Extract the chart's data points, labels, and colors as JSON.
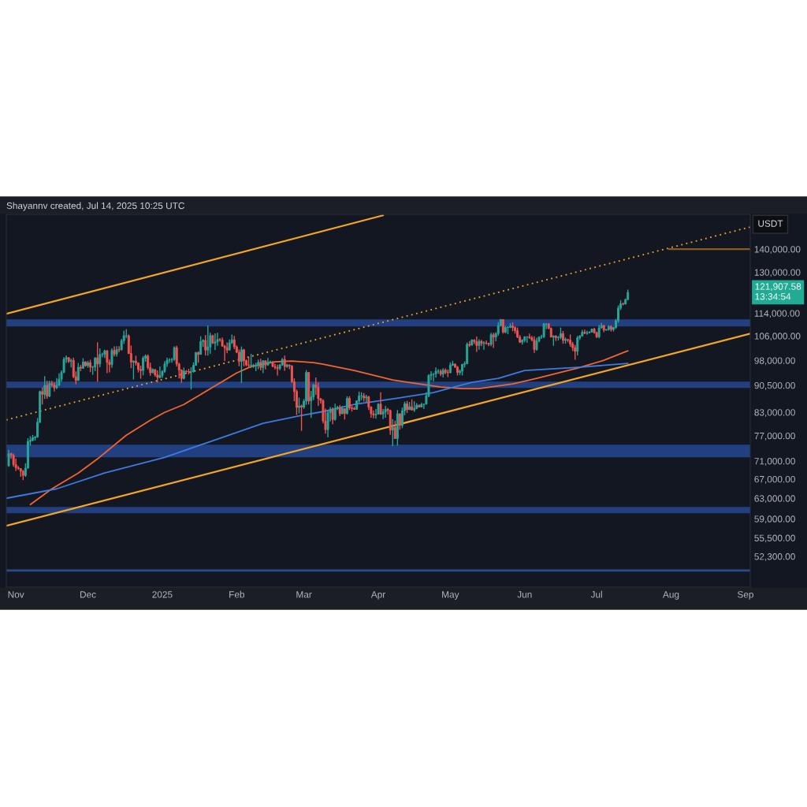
{
  "chart_data": {
    "type": "candlestick",
    "title": "Shayannv created, Jul 14, 2025 10:25 UTC",
    "x": [
      "2024-10-29",
      "2024-10-30",
      "2024-10-31",
      "2024-11-01",
      "2024-11-02",
      "2024-11-03",
      "2024-11-04",
      "2024-11-05",
      "2024-11-06",
      "2024-11-07",
      "2024-11-08",
      "2024-11-09",
      "2024-11-10",
      "2024-11-11",
      "2024-11-12",
      "2024-11-13",
      "2024-11-14",
      "2024-11-15",
      "2024-11-16",
      "2024-11-17",
      "2024-11-18",
      "2024-11-19",
      "2024-11-20",
      "2024-11-21",
      "2024-11-22",
      "2024-11-23",
      "2024-11-24",
      "2024-11-25",
      "2024-11-26",
      "2024-11-27",
      "2024-11-28",
      "2024-11-29",
      "2024-11-30",
      "2024-12-01",
      "2024-12-02",
      "2024-12-03",
      "2024-12-04",
      "2024-12-05",
      "2024-12-06",
      "2024-12-07",
      "2024-12-08",
      "2024-12-09",
      "2024-12-10",
      "2024-12-11",
      "2024-12-12",
      "2024-12-13",
      "2024-12-14",
      "2024-12-15",
      "2024-12-16",
      "2024-12-17",
      "2024-12-18",
      "2024-12-19",
      "2024-12-20",
      "2024-12-21",
      "2024-12-22",
      "2024-12-23",
      "2024-12-24",
      "2024-12-25",
      "2024-12-26",
      "2024-12-27",
      "2024-12-28",
      "2024-12-29",
      "2024-12-30",
      "2024-12-31",
      "2025-01-01",
      "2025-01-02",
      "2025-01-03",
      "2025-01-04",
      "2025-01-05",
      "2025-01-06",
      "2025-01-07",
      "2025-01-08",
      "2025-01-09",
      "2025-01-10",
      "2025-01-11",
      "2025-01-12",
      "2025-01-13",
      "2025-01-14",
      "2025-01-15",
      "2025-01-16",
      "2025-01-17",
      "2025-01-18",
      "2025-01-19",
      "2025-01-20",
      "2025-01-21",
      "2025-01-22",
      "2025-01-23",
      "2025-01-24",
      "2025-01-25",
      "2025-01-26",
      "2025-01-27",
      "2025-01-28",
      "2025-01-29",
      "2025-01-30",
      "2025-01-31",
      "2025-02-01",
      "2025-02-02",
      "2025-02-03",
      "2025-02-04",
      "2025-02-05",
      "2025-02-06",
      "2025-02-07",
      "2025-02-08",
      "2025-02-09",
      "2025-02-10",
      "2025-02-11",
      "2025-02-12",
      "2025-02-13",
      "2025-02-14",
      "2025-02-15",
      "2025-02-16",
      "2025-02-17",
      "2025-02-18",
      "2025-02-19",
      "2025-02-20",
      "2025-02-21",
      "2025-02-22",
      "2025-02-23",
      "2025-02-24",
      "2025-02-25",
      "2025-02-26",
      "2025-02-27",
      "2025-02-28",
      "2025-03-01",
      "2025-03-02",
      "2025-03-03",
      "2025-03-04",
      "2025-03-05",
      "2025-03-06",
      "2025-03-07",
      "2025-03-08",
      "2025-03-09",
      "2025-03-10",
      "2025-03-11",
      "2025-03-12",
      "2025-03-13",
      "2025-03-14",
      "2025-03-15",
      "2025-03-16",
      "2025-03-17",
      "2025-03-18",
      "2025-03-19",
      "2025-03-20",
      "2025-03-21",
      "2025-03-22",
      "2025-03-23",
      "2025-03-24",
      "2025-03-25",
      "2025-03-26",
      "2025-03-27",
      "2025-03-28",
      "2025-03-29",
      "2025-03-30",
      "2025-03-31",
      "2025-04-01",
      "2025-04-02",
      "2025-04-03",
      "2025-04-04",
      "2025-04-05",
      "2025-04-06",
      "2025-04-07",
      "2025-04-08",
      "2025-04-09",
      "2025-04-10",
      "2025-04-11",
      "2025-04-12",
      "2025-04-13",
      "2025-04-14",
      "2025-04-15",
      "2025-04-16",
      "2025-04-17",
      "2025-04-18",
      "2025-04-19",
      "2025-04-20",
      "2025-04-21",
      "2025-04-22",
      "2025-04-23",
      "2025-04-24",
      "2025-04-25",
      "2025-04-26",
      "2025-04-27",
      "2025-04-28",
      "2025-04-29",
      "2025-04-30",
      "2025-05-01",
      "2025-05-02",
      "2025-05-03",
      "2025-05-04",
      "2025-05-05",
      "2025-05-06",
      "2025-05-07",
      "2025-05-08",
      "2025-05-09",
      "2025-05-10",
      "2025-05-11",
      "2025-05-12",
      "2025-05-13",
      "2025-05-14",
      "2025-05-15",
      "2025-05-16",
      "2025-05-17",
      "2025-05-18",
      "2025-05-19",
      "2025-05-20",
      "2025-05-21",
      "2025-05-22",
      "2025-05-23",
      "2025-05-24",
      "2025-05-25",
      "2025-05-26",
      "2025-05-27",
      "2025-05-28",
      "2025-05-29",
      "2025-05-30",
      "2025-05-31",
      "2025-06-01",
      "2025-06-02",
      "2025-06-03",
      "2025-06-04",
      "2025-06-05",
      "2025-06-06",
      "2025-06-07",
      "2025-06-08",
      "2025-06-09",
      "2025-06-10",
      "2025-06-11",
      "2025-06-12",
      "2025-06-13",
      "2025-06-14",
      "2025-06-15",
      "2025-06-16",
      "2025-06-17",
      "2025-06-18",
      "2025-06-19",
      "2025-06-20",
      "2025-06-21",
      "2025-06-22",
      "2025-06-23",
      "2025-06-24",
      "2025-06-25",
      "2025-06-26",
      "2025-06-27",
      "2025-06-28",
      "2025-06-29",
      "2025-06-30",
      "2025-07-01",
      "2025-07-02",
      "2025-07-03",
      "2025-07-04",
      "2025-07-05",
      "2025-07-06",
      "2025-07-07",
      "2025-07-08",
      "2025-07-09",
      "2025-07-10",
      "2025-07-11",
      "2025-07-12",
      "2025-07-13",
      "2025-07-14"
    ],
    "ohlc": [
      [
        69900,
        73600,
        69700,
        72700
      ],
      [
        72700,
        72900,
        71500,
        72300
      ],
      [
        72300,
        72700,
        69700,
        70200
      ],
      [
        70200,
        71600,
        68800,
        69500
      ],
      [
        69500,
        69900,
        69000,
        69300
      ],
      [
        69300,
        69400,
        67500,
        68700
      ],
      [
        68700,
        69000,
        66800,
        67800
      ],
      [
        67800,
        70500,
        67500,
        69400
      ],
      [
        69400,
        76400,
        69300,
        75600
      ],
      [
        75600,
        76900,
        74600,
        75900
      ],
      [
        75900,
        77200,
        75600,
        76500
      ],
      [
        76500,
        76900,
        75800,
        76700
      ],
      [
        76700,
        81500,
        76500,
        80400
      ],
      [
        80400,
        89000,
        80200,
        88700
      ],
      [
        88700,
        89900,
        85100,
        87900
      ],
      [
        87900,
        93200,
        86600,
        90500
      ],
      [
        90500,
        91800,
        86700,
        87400
      ],
      [
        87400,
        91800,
        87100,
        91000
      ],
      [
        91000,
        91800,
        90100,
        90600
      ],
      [
        90600,
        91400,
        88700,
        89800
      ],
      [
        89800,
        92600,
        89400,
        90500
      ],
      [
        90500,
        94000,
        90400,
        92300
      ],
      [
        92300,
        94900,
        91500,
        94300
      ],
      [
        94300,
        99000,
        94100,
        98400
      ],
      [
        98400,
        99600,
        97200,
        98900
      ],
      [
        98900,
        98900,
        97200,
        97700
      ],
      [
        97700,
        98600,
        95800,
        98000
      ],
      [
        98000,
        98900,
        92600,
        93000
      ],
      [
        93000,
        94600,
        90800,
        91900
      ],
      [
        91900,
        97200,
        91800,
        95900
      ],
      [
        95900,
        96600,
        94700,
        95600
      ],
      [
        95600,
        98700,
        95400,
        97500
      ],
      [
        97500,
        97800,
        96000,
        96400
      ],
      [
        96400,
        97900,
        95700,
        97300
      ],
      [
        97300,
        98200,
        94400,
        95900
      ],
      [
        95900,
        96300,
        93600,
        96000
      ],
      [
        96000,
        99000,
        94700,
        98800
      ],
      [
        98800,
        103900,
        91500,
        96900
      ],
      [
        96900,
        101900,
        95900,
        99900
      ],
      [
        99900,
        100500,
        99000,
        99900
      ],
      [
        99900,
        101400,
        98800,
        101100
      ],
      [
        101100,
        101300,
        94100,
        97400
      ],
      [
        97400,
        98300,
        94300,
        96700
      ],
      [
        96700,
        101900,
        95700,
        101200
      ],
      [
        101200,
        102500,
        99300,
        100000
      ],
      [
        100000,
        102600,
        99200,
        101500
      ],
      [
        101500,
        102600,
        100600,
        101400
      ],
      [
        101400,
        105000,
        101200,
        104400
      ],
      [
        104400,
        107800,
        103300,
        106100
      ],
      [
        106100,
        108300,
        105300,
        106100
      ],
      [
        106100,
        106500,
        100000,
        100200
      ],
      [
        100200,
        102800,
        95600,
        97500
      ],
      [
        97500,
        98000,
        92200,
        97800
      ],
      [
        97800,
        99500,
        96400,
        97200
      ],
      [
        97200,
        97400,
        94300,
        95200
      ],
      [
        95200,
        96400,
        92400,
        94900
      ],
      [
        94900,
        99400,
        93400,
        98700
      ],
      [
        98700,
        99900,
        97600,
        99400
      ],
      [
        99400,
        99900,
        95200,
        95800
      ],
      [
        95800,
        97300,
        93300,
        94200
      ],
      [
        94200,
        95500,
        94100,
        95200
      ],
      [
        95200,
        95200,
        93000,
        93600
      ],
      [
        93600,
        94900,
        91300,
        92800
      ],
      [
        92800,
        96100,
        92500,
        93400
      ],
      [
        93400,
        95000,
        92700,
        94600
      ],
      [
        94600,
        97800,
        94200,
        96900
      ],
      [
        96900,
        98900,
        96000,
        98100
      ],
      [
        98100,
        98700,
        97200,
        98200
      ],
      [
        98200,
        98800,
        97300,
        98300
      ],
      [
        98300,
        102500,
        97900,
        102100
      ],
      [
        102100,
        102700,
        96100,
        96900
      ],
      [
        96900,
        97300,
        92500,
        95000
      ],
      [
        95000,
        95300,
        91200,
        92500
      ],
      [
        92500,
        95800,
        92200,
        94700
      ],
      [
        94700,
        95000,
        93800,
        94600
      ],
      [
        94600,
        95400,
        93700,
        94500
      ],
      [
        94500,
        95900,
        89300,
        94500
      ],
      [
        94500,
        97400,
        94300,
        96500
      ],
      [
        96500,
        100700,
        96500,
        100500
      ],
      [
        100500,
        100900,
        97300,
        99900
      ],
      [
        99900,
        105900,
        99900,
        104100
      ],
      [
        104100,
        104900,
        102300,
        104500
      ],
      [
        104500,
        106300,
        99600,
        101300
      ],
      [
        101300,
        109600,
        99500,
        102300
      ],
      [
        102300,
        107100,
        100100,
        106100
      ],
      [
        106100,
        106400,
        103300,
        103600
      ],
      [
        103600,
        106900,
        101300,
        104000
      ],
      [
        104000,
        107100,
        102700,
        104800
      ],
      [
        104800,
        105300,
        104100,
        104700
      ],
      [
        104700,
        105500,
        102500,
        102600
      ],
      [
        102600,
        103000,
        97800,
        102100
      ],
      [
        102100,
        103800,
        100300,
        101300
      ],
      [
        101300,
        104800,
        101300,
        103700
      ],
      [
        103700,
        106500,
        103300,
        104700
      ],
      [
        104700,
        106000,
        101600,
        102400
      ],
      [
        102400,
        102800,
        100300,
        100600
      ],
      [
        100600,
        101500,
        96200,
        97700
      ],
      [
        97700,
        102500,
        91200,
        101400
      ],
      [
        101400,
        101700,
        96200,
        97900
      ],
      [
        97900,
        98300,
        96200,
        96600
      ],
      [
        96600,
        99200,
        95700,
        96500
      ],
      [
        96500,
        100100,
        95700,
        96500
      ],
      [
        96500,
        96900,
        95700,
        96500
      ],
      [
        96500,
        97300,
        94700,
        96500
      ],
      [
        96500,
        98300,
        95300,
        97400
      ],
      [
        97400,
        98500,
        94900,
        95800
      ],
      [
        95800,
        98100,
        94100,
        97900
      ],
      [
        97900,
        97900,
        95200,
        96600
      ],
      [
        96600,
        98800,
        96300,
        97500
      ],
      [
        97500,
        97900,
        97100,
        97600
      ],
      [
        97600,
        97700,
        96000,
        96100
      ],
      [
        96100,
        97000,
        95200,
        95800
      ],
      [
        95800,
        96700,
        93400,
        95500
      ],
      [
        95500,
        96900,
        95000,
        96600
      ],
      [
        96600,
        98800,
        96400,
        98300
      ],
      [
        98300,
        99500,
        94800,
        96100
      ],
      [
        96100,
        96900,
        95700,
        96600
      ],
      [
        96600,
        96700,
        95300,
        96300
      ],
      [
        96300,
        96500,
        91200,
        91500
      ],
      [
        91500,
        92500,
        86000,
        88700
      ],
      [
        88700,
        89300,
        82300,
        84300
      ],
      [
        84300,
        87000,
        82700,
        84700
      ],
      [
        84700,
        85100,
        78200,
        84400
      ],
      [
        84400,
        86600,
        83900,
        86000
      ],
      [
        86000,
        95000,
        85000,
        94300
      ],
      [
        94300,
        94400,
        85100,
        86100
      ],
      [
        86100,
        88900,
        81500,
        87200
      ],
      [
        87200,
        91000,
        86300,
        90600
      ],
      [
        90600,
        92800,
        87800,
        89900
      ],
      [
        89900,
        91300,
        84700,
        86700
      ],
      [
        86700,
        86900,
        85300,
        86200
      ],
      [
        86200,
        86500,
        80100,
        80700
      ],
      [
        80700,
        84000,
        77500,
        78500
      ],
      [
        78500,
        83600,
        76600,
        82900
      ],
      [
        82900,
        84400,
        80600,
        83700
      ],
      [
        83700,
        84300,
        79900,
        81100
      ],
      [
        81100,
        85300,
        80800,
        84000
      ],
      [
        84000,
        84700,
        83600,
        84300
      ],
      [
        84300,
        85000,
        82000,
        82600
      ],
      [
        82600,
        84700,
        82500,
        84000
      ],
      [
        84000,
        84000,
        81100,
        82700
      ],
      [
        82700,
        87400,
        82400,
        86800
      ],
      [
        86800,
        87400,
        83600,
        84200
      ],
      [
        84200,
        84800,
        83200,
        84000
      ],
      [
        84000,
        84500,
        83700,
        83800
      ],
      [
        83800,
        86100,
        83700,
        86100
      ],
      [
        86100,
        88700,
        85500,
        87500
      ],
      [
        87500,
        88500,
        86300,
        87500
      ],
      [
        87500,
        88300,
        85900,
        86900
      ],
      [
        86900,
        87800,
        85800,
        87200
      ],
      [
        87200,
        87500,
        83600,
        84400
      ],
      [
        84400,
        84600,
        81600,
        82600
      ],
      [
        82600,
        83500,
        81400,
        82300
      ],
      [
        82300,
        83900,
        81300,
        82500
      ],
      [
        82500,
        85500,
        82400,
        85200
      ],
      [
        85200,
        88500,
        82300,
        82500
      ],
      [
        82500,
        83900,
        81200,
        83100
      ],
      [
        83100,
        84700,
        81600,
        83800
      ],
      [
        83800,
        84200,
        82400,
        83500
      ],
      [
        83500,
        83700,
        77200,
        78400
      ],
      [
        78400,
        81200,
        74500,
        79100
      ],
      [
        79100,
        80800,
        76200,
        76300
      ],
      [
        76300,
        83600,
        74600,
        82600
      ],
      [
        82600,
        82700,
        78500,
        79600
      ],
      [
        79600,
        84300,
        78900,
        83400
      ],
      [
        83400,
        85900,
        82200,
        85300
      ],
      [
        85300,
        86100,
        82800,
        83700
      ],
      [
        83700,
        85800,
        83700,
        84500
      ],
      [
        84500,
        86500,
        83600,
        83600
      ],
      [
        83600,
        86000,
        83100,
        84000
      ],
      [
        84000,
        85500,
        83800,
        84900
      ],
      [
        84900,
        85100,
        84300,
        84400
      ],
      [
        84400,
        85600,
        84300,
        85100
      ],
      [
        85100,
        85300,
        83900,
        85200
      ],
      [
        85200,
        88500,
        85100,
        87500
      ],
      [
        87500,
        93800,
        87100,
        93400
      ],
      [
        93400,
        94700,
        91900,
        93700
      ],
      [
        93700,
        94000,
        91700,
        93900
      ],
      [
        93900,
        95800,
        92800,
        94700
      ],
      [
        94700,
        95300,
        93900,
        94700
      ],
      [
        94700,
        95200,
        93200,
        93800
      ],
      [
        93800,
        95600,
        92800,
        95000
      ],
      [
        95000,
        95500,
        93800,
        94300
      ],
      [
        94300,
        95200,
        92900,
        94200
      ],
      [
        94200,
        97400,
        94100,
        96500
      ],
      [
        96500,
        97900,
        96300,
        96900
      ],
      [
        96900,
        96900,
        95700,
        95900
      ],
      [
        95900,
        96300,
        93400,
        94300
      ],
      [
        94300,
        95200,
        93500,
        94700
      ],
      [
        94700,
        96900,
        93400,
        96800
      ],
      [
        96800,
        97700,
        95800,
        97000
      ],
      [
        97000,
        103800,
        96900,
        103200
      ],
      [
        103200,
        104300,
        102300,
        102900
      ],
      [
        102900,
        104900,
        102800,
        104600
      ],
      [
        104600,
        104900,
        103300,
        104100
      ],
      [
        104100,
        105800,
        100700,
        102800
      ],
      [
        102800,
        104900,
        101400,
        104200
      ],
      [
        104200,
        104700,
        102600,
        103500
      ],
      [
        103500,
        104200,
        101400,
        103700
      ],
      [
        103700,
        104500,
        103100,
        103500
      ],
      [
        103500,
        103700,
        102600,
        103200
      ],
      [
        103200,
        107100,
        102600,
        106400
      ],
      [
        106400,
        107100,
        102000,
        105600
      ],
      [
        105600,
        107300,
        104200,
        106800
      ],
      [
        106800,
        110800,
        106100,
        109600
      ],
      [
        109600,
        111900,
        109300,
        111700
      ],
      [
        111700,
        111800,
        106800,
        107300
      ],
      [
        107300,
        109500,
        106900,
        108900
      ],
      [
        108900,
        109300,
        106600,
        109000
      ],
      [
        109000,
        110400,
        108700,
        109400
      ],
      [
        109400,
        110700,
        107600,
        108900
      ],
      [
        108900,
        109300,
        106800,
        107800
      ],
      [
        107800,
        108900,
        105300,
        105600
      ],
      [
        105600,
        106300,
        103600,
        103900
      ],
      [
        103900,
        104900,
        103100,
        104600
      ],
      [
        104600,
        105900,
        103900,
        105700
      ],
      [
        105700,
        105900,
        103700,
        105700
      ],
      [
        105700,
        106800,
        105000,
        105400
      ],
      [
        105400,
        106000,
        104200,
        104700
      ],
      [
        104700,
        105900,
        100400,
        101500
      ],
      [
        101500,
        105400,
        101100,
        104300
      ],
      [
        104300,
        105900,
        103900,
        105600
      ],
      [
        105600,
        106400,
        105000,
        105700
      ],
      [
        105700,
        110500,
        105300,
        110200
      ],
      [
        110200,
        110400,
        108300,
        110200
      ],
      [
        110200,
        110400,
        108300,
        108600
      ],
      [
        108600,
        108900,
        105600,
        105600
      ],
      [
        105600,
        106200,
        102700,
        106000
      ],
      [
        106000,
        106200,
        104300,
        105400
      ],
      [
        105400,
        106000,
        104500,
        105500
      ],
      [
        105500,
        108900,
        104900,
        106800
      ],
      [
        106800,
        107700,
        103400,
        104500
      ],
      [
        104500,
        105500,
        103400,
        104800
      ],
      [
        104800,
        105000,
        103900,
        104600
      ],
      [
        104600,
        106500,
        102400,
        103300
      ],
      [
        103300,
        104000,
        101000,
        102100
      ],
      [
        102100,
        103000,
        98200,
        100900
      ],
      [
        100900,
        106000,
        99600,
        105400
      ],
      [
        105400,
        106300,
        104700,
        106000
      ],
      [
        106000,
        108100,
        105800,
        107300
      ],
      [
        107300,
        108200,
        106600,
        106900
      ],
      [
        106900,
        107800,
        106400,
        107100
      ],
      [
        107100,
        107600,
        106900,
        107300
      ],
      [
        107300,
        108500,
        107200,
        108400
      ],
      [
        108400,
        108800,
        106800,
        107100
      ],
      [
        107100,
        107500,
        105300,
        105700
      ],
      [
        105700,
        109800,
        105200,
        108800
      ],
      [
        108800,
        110500,
        108600,
        109600
      ],
      [
        109600,
        109800,
        107300,
        108000
      ],
      [
        108000,
        108400,
        107800,
        108200
      ],
      [
        108200,
        109700,
        107800,
        109200
      ],
      [
        109200,
        109700,
        107500,
        108200
      ],
      [
        108200,
        109200,
        107500,
        108900
      ],
      [
        108900,
        111900,
        108400,
        111300
      ],
      [
        111300,
        116900,
        110600,
        115900
      ],
      [
        115900,
        118900,
        115200,
        117500
      ],
      [
        117500,
        118000,
        116900,
        117400
      ],
      [
        117400,
        119500,
        117300,
        119100
      ],
      [
        119100,
        123000,
        118900,
        121907.58
      ]
    ],
    "series": [
      {
        "type": "line",
        "color": "#f2652f",
        "x": [
          "2024-11-07",
          "2024-11-16",
          "2024-11-27",
          "2024-12-05",
          "2024-12-17",
          "2024-12-27",
          "2025-01-02",
          "2025-01-10",
          "2025-01-21",
          "2025-02-01",
          "2025-02-07",
          "2025-02-17",
          "2025-02-24",
          "2025-03-05",
          "2025-03-09",
          "2025-03-22",
          "2025-04-07",
          "2025-04-18",
          "2025-04-27",
          "2025-05-06",
          "2025-05-13",
          "2025-05-27",
          "2025-06-06",
          "2025-06-23",
          "2025-07-04",
          "2025-07-14"
        ],
        "values": [
          61750,
          64950,
          68320,
          71480,
          77120,
          80910,
          82980,
          85110,
          89520,
          94150,
          96080,
          97550,
          97790,
          97300,
          96810,
          94880,
          92050,
          90890,
          89980,
          89520,
          89520,
          90890,
          92510,
          95590,
          98040,
          101070
        ]
      },
      {
        "type": "line",
        "color": "#3d7be0",
        "x": [
          "2024-10-28",
          "2024-11-18",
          "2024-12-08",
          "2025-01-02",
          "2025-01-21",
          "2025-02-12",
          "2025-02-28",
          "2025-03-09",
          "2025-03-22",
          "2025-04-07",
          "2025-04-24",
          "2025-05-10",
          "2025-05-21",
          "2025-06-01",
          "2025-06-23",
          "2025-07-14"
        ],
        "values": [
          63010,
          64950,
          68320,
          71850,
          75570,
          80110,
          82150,
          83190,
          85110,
          86630,
          88400,
          91350,
          92510,
          94880,
          95840,
          97050
        ]
      },
      {
        "type": "line",
        "color": "#f5a623",
        "line_style": "solid",
        "x": [
          "2024-10-28",
          "2025-04-03"
        ],
        "values": [
          113800,
          156000
        ]
      },
      {
        "type": "line",
        "color": "#f5a623",
        "line_style": "solid",
        "x": [
          "2024-10-28",
          "2025-09-03"
        ],
        "values": [
          57700,
          106800
        ]
      },
      {
        "type": "line",
        "color": "#f5a623",
        "line_style": "dotted",
        "x": [
          "2024-10-28",
          "2025-09-03"
        ],
        "values": [
          81000,
          150300
        ]
      },
      {
        "type": "line",
        "color": "#8b5a1f",
        "line_style": "solid",
        "x": [
          "2025-07-31",
          "2025-09-03"
        ],
        "values": [
          140000,
          140000
        ]
      }
    ],
    "bands": [
      {
        "axis": "y",
        "from": 109300,
        "to": 111800,
        "color": "#22407f"
      },
      {
        "axis": "y",
        "from": 89730,
        "to": 91560,
        "color": "#22407f"
      },
      {
        "axis": "y",
        "from": 71860,
        "to": 74830,
        "color": "#22407f"
      },
      {
        "axis": "y",
        "from": 60080,
        "to": 61300,
        "color": "#22407f"
      }
    ],
    "ref_lines": [
      {
        "axis": "y",
        "value": 50000,
        "color": "#2a4a8c"
      }
    ],
    "annotations": [
      "USDT",
      "121,907.58\n13:34:54"
    ],
    "log": true,
    "grid": false,
    "xlim": [
      "2024-10-28",
      "2025-09-03"
    ],
    "xticks": [
      {
        "value": "2024-11-01",
        "label": "Nov"
      },
      {
        "value": "2024-12-01",
        "label": "Dec"
      },
      {
        "value": "2025-01-01",
        "label": "2025"
      },
      {
        "value": "2025-02-01",
        "label": "Feb"
      },
      {
        "value": "2025-03-01",
        "label": "Mar"
      },
      {
        "value": "2025-04-01",
        "label": "Apr"
      },
      {
        "value": "2025-05-01",
        "label": "May"
      },
      {
        "value": "2025-06-01",
        "label": "Jun"
      },
      {
        "value": "2025-07-01",
        "label": "Jul"
      },
      {
        "value": "2025-08-01",
        "label": "Aug"
      },
      {
        "value": "2025-09-01",
        "label": "Sep"
      }
    ],
    "ylim": [
      47400,
      156500
    ],
    "yticks": [
      {
        "value": 52300,
        "label": "52,300.00"
      },
      {
        "value": 55500,
        "label": "55,500.00"
      },
      {
        "value": 59000,
        "label": "59,000.00"
      },
      {
        "value": 63000,
        "label": "63,000.00"
      },
      {
        "value": 67000,
        "label": "67,000.00"
      },
      {
        "value": 71000,
        "label": "71,000.00"
      },
      {
        "value": 77000,
        "label": "77,000.00"
      },
      {
        "value": 83000,
        "label": "83,000.00"
      },
      {
        "value": 90500,
        "label": "90,500.00"
      },
      {
        "value": 98000,
        "label": "98,000.00"
      },
      {
        "value": 106000,
        "label": "106,000.00"
      },
      {
        "value": 114000,
        "label": "114,000.00"
      },
      {
        "value": 130000,
        "label": "130,000.00"
      },
      {
        "value": 140000,
        "label": "140,000.00"
      }
    ]
  }
}
